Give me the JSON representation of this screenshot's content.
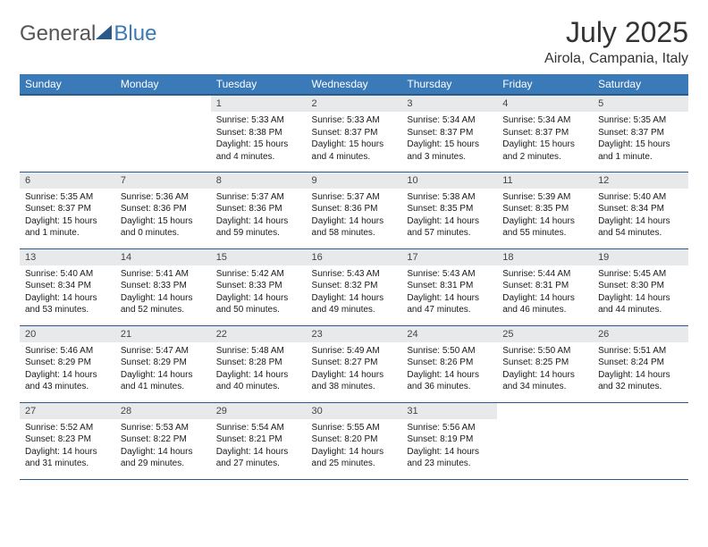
{
  "logo": {
    "part1": "General",
    "part2": "Blue"
  },
  "title": "July 2025",
  "location": "Airola, Campania, Italy",
  "colors": {
    "header_bg": "#3a7ab8",
    "header_fg": "#ffffff",
    "daynum_bg": "#e8e9ea",
    "row_border": "#2a5a8a",
    "text": "#1a1a1a"
  },
  "weekdays": [
    "Sunday",
    "Monday",
    "Tuesday",
    "Wednesday",
    "Thursday",
    "Friday",
    "Saturday"
  ],
  "weeks": [
    [
      {
        "empty": true
      },
      {
        "empty": true
      },
      {
        "n": "1",
        "sr": "Sunrise: 5:33 AM",
        "ss": "Sunset: 8:38 PM",
        "dl": "Daylight: 15 hours and 4 minutes."
      },
      {
        "n": "2",
        "sr": "Sunrise: 5:33 AM",
        "ss": "Sunset: 8:37 PM",
        "dl": "Daylight: 15 hours and 4 minutes."
      },
      {
        "n": "3",
        "sr": "Sunrise: 5:34 AM",
        "ss": "Sunset: 8:37 PM",
        "dl": "Daylight: 15 hours and 3 minutes."
      },
      {
        "n": "4",
        "sr": "Sunrise: 5:34 AM",
        "ss": "Sunset: 8:37 PM",
        "dl": "Daylight: 15 hours and 2 minutes."
      },
      {
        "n": "5",
        "sr": "Sunrise: 5:35 AM",
        "ss": "Sunset: 8:37 PM",
        "dl": "Daylight: 15 hours and 1 minute."
      }
    ],
    [
      {
        "n": "6",
        "sr": "Sunrise: 5:35 AM",
        "ss": "Sunset: 8:37 PM",
        "dl": "Daylight: 15 hours and 1 minute."
      },
      {
        "n": "7",
        "sr": "Sunrise: 5:36 AM",
        "ss": "Sunset: 8:36 PM",
        "dl": "Daylight: 15 hours and 0 minutes."
      },
      {
        "n": "8",
        "sr": "Sunrise: 5:37 AM",
        "ss": "Sunset: 8:36 PM",
        "dl": "Daylight: 14 hours and 59 minutes."
      },
      {
        "n": "9",
        "sr": "Sunrise: 5:37 AM",
        "ss": "Sunset: 8:36 PM",
        "dl": "Daylight: 14 hours and 58 minutes."
      },
      {
        "n": "10",
        "sr": "Sunrise: 5:38 AM",
        "ss": "Sunset: 8:35 PM",
        "dl": "Daylight: 14 hours and 57 minutes."
      },
      {
        "n": "11",
        "sr": "Sunrise: 5:39 AM",
        "ss": "Sunset: 8:35 PM",
        "dl": "Daylight: 14 hours and 55 minutes."
      },
      {
        "n": "12",
        "sr": "Sunrise: 5:40 AM",
        "ss": "Sunset: 8:34 PM",
        "dl": "Daylight: 14 hours and 54 minutes."
      }
    ],
    [
      {
        "n": "13",
        "sr": "Sunrise: 5:40 AM",
        "ss": "Sunset: 8:34 PM",
        "dl": "Daylight: 14 hours and 53 minutes."
      },
      {
        "n": "14",
        "sr": "Sunrise: 5:41 AM",
        "ss": "Sunset: 8:33 PM",
        "dl": "Daylight: 14 hours and 52 minutes."
      },
      {
        "n": "15",
        "sr": "Sunrise: 5:42 AM",
        "ss": "Sunset: 8:33 PM",
        "dl": "Daylight: 14 hours and 50 minutes."
      },
      {
        "n": "16",
        "sr": "Sunrise: 5:43 AM",
        "ss": "Sunset: 8:32 PM",
        "dl": "Daylight: 14 hours and 49 minutes."
      },
      {
        "n": "17",
        "sr": "Sunrise: 5:43 AM",
        "ss": "Sunset: 8:31 PM",
        "dl": "Daylight: 14 hours and 47 minutes."
      },
      {
        "n": "18",
        "sr": "Sunrise: 5:44 AM",
        "ss": "Sunset: 8:31 PM",
        "dl": "Daylight: 14 hours and 46 minutes."
      },
      {
        "n": "19",
        "sr": "Sunrise: 5:45 AM",
        "ss": "Sunset: 8:30 PM",
        "dl": "Daylight: 14 hours and 44 minutes."
      }
    ],
    [
      {
        "n": "20",
        "sr": "Sunrise: 5:46 AM",
        "ss": "Sunset: 8:29 PM",
        "dl": "Daylight: 14 hours and 43 minutes."
      },
      {
        "n": "21",
        "sr": "Sunrise: 5:47 AM",
        "ss": "Sunset: 8:29 PM",
        "dl": "Daylight: 14 hours and 41 minutes."
      },
      {
        "n": "22",
        "sr": "Sunrise: 5:48 AM",
        "ss": "Sunset: 8:28 PM",
        "dl": "Daylight: 14 hours and 40 minutes."
      },
      {
        "n": "23",
        "sr": "Sunrise: 5:49 AM",
        "ss": "Sunset: 8:27 PM",
        "dl": "Daylight: 14 hours and 38 minutes."
      },
      {
        "n": "24",
        "sr": "Sunrise: 5:50 AM",
        "ss": "Sunset: 8:26 PM",
        "dl": "Daylight: 14 hours and 36 minutes."
      },
      {
        "n": "25",
        "sr": "Sunrise: 5:50 AM",
        "ss": "Sunset: 8:25 PM",
        "dl": "Daylight: 14 hours and 34 minutes."
      },
      {
        "n": "26",
        "sr": "Sunrise: 5:51 AM",
        "ss": "Sunset: 8:24 PM",
        "dl": "Daylight: 14 hours and 32 minutes."
      }
    ],
    [
      {
        "n": "27",
        "sr": "Sunrise: 5:52 AM",
        "ss": "Sunset: 8:23 PM",
        "dl": "Daylight: 14 hours and 31 minutes."
      },
      {
        "n": "28",
        "sr": "Sunrise: 5:53 AM",
        "ss": "Sunset: 8:22 PM",
        "dl": "Daylight: 14 hours and 29 minutes."
      },
      {
        "n": "29",
        "sr": "Sunrise: 5:54 AM",
        "ss": "Sunset: 8:21 PM",
        "dl": "Daylight: 14 hours and 27 minutes."
      },
      {
        "n": "30",
        "sr": "Sunrise: 5:55 AM",
        "ss": "Sunset: 8:20 PM",
        "dl": "Daylight: 14 hours and 25 minutes."
      },
      {
        "n": "31",
        "sr": "Sunrise: 5:56 AM",
        "ss": "Sunset: 8:19 PM",
        "dl": "Daylight: 14 hours and 23 minutes."
      },
      {
        "empty": true
      },
      {
        "empty": true
      }
    ]
  ]
}
